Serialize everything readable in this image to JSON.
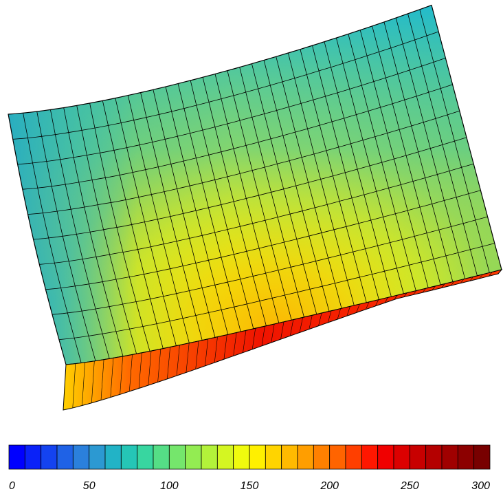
{
  "colorbar": {
    "ticks": [
      {
        "value": 0,
        "label": "0"
      },
      {
        "value": 50,
        "label": "50"
      },
      {
        "value": 100,
        "label": "100"
      },
      {
        "value": 150,
        "label": "150"
      },
      {
        "value": 200,
        "label": "200"
      },
      {
        "value": 250,
        "label": "250"
      },
      {
        "value": 300,
        "label": "300"
      }
    ],
    "range": [
      0,
      300
    ],
    "segment_step": 10,
    "colors": [
      "#0000ff",
      "#0a22f8",
      "#1443f0",
      "#1f62e6",
      "#2b80dc",
      "#2c99d2",
      "#22b3c6",
      "#25c6b6",
      "#38d6a0",
      "#55de86",
      "#75e66c",
      "#93ec52",
      "#b3f23a",
      "#d4f622",
      "#f0fb0e",
      "#fff000",
      "#ffd400",
      "#ffba00",
      "#ff9e00",
      "#ff8000",
      "#ff6400",
      "#ff3f00",
      "#ff1700",
      "#f00000",
      "#dc0000",
      "#c80000",
      "#b40000",
      "#a00000",
      "#8c0000",
      "#780000"
    ]
  },
  "surface": {
    "description_colors": {
      "low": "#26b6d2",
      "mid": "#9ee84a",
      "high": "#ffe600",
      "hot": "#ff9400",
      "max": "#e60a00"
    }
  }
}
